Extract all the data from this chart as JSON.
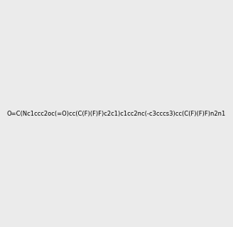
{
  "smiles": "O=C(Nc1ccc2oc(=O)cc(C(F)(F)F)c2c1)c1cc2nc(-c3cccs3)cc(C(F)(F)F)n2n1",
  "background_color": "#ebebeb",
  "image_size": 300,
  "atom_colors": {
    "N": "#0000ff",
    "O": "#ff0000",
    "F": "#ff00ff",
    "S": "#cccc00",
    "C": "#000000",
    "H": "#000000"
  },
  "title": ""
}
